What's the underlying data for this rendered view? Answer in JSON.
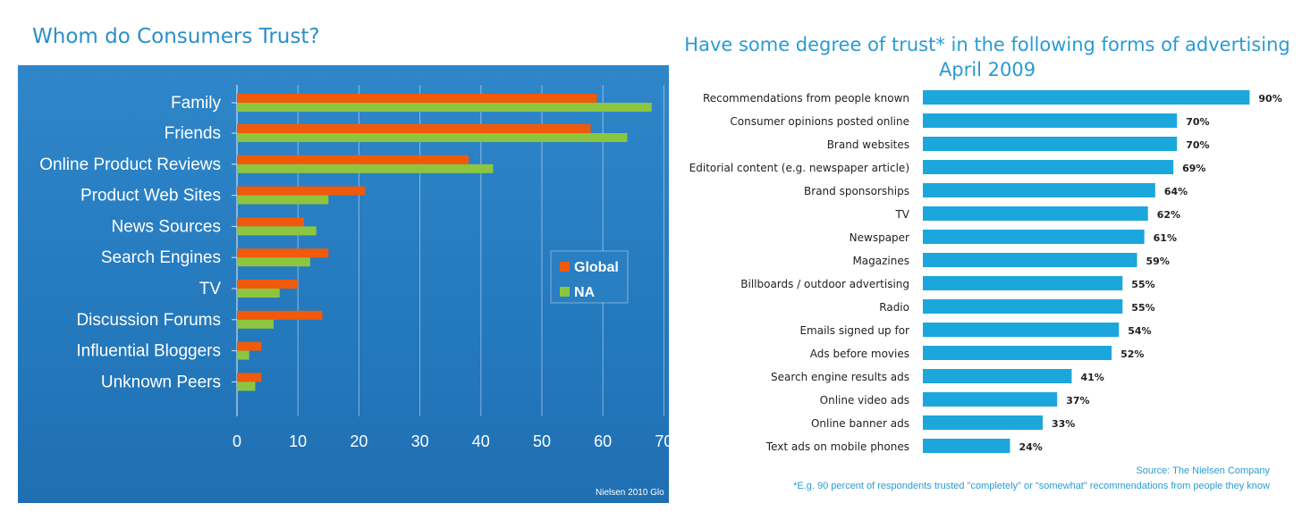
{
  "chart_data": [
    {
      "type": "bar",
      "orientation": "horizontal",
      "title": "Whom do Consumers Trust?",
      "categories": [
        "Family",
        "Friends",
        "Online Product Reviews",
        "Product Web Sites",
        "News Sources",
        "Search Engines",
        "TV",
        "Discussion Forums",
        "Influential Bloggers",
        "Unknown Peers"
      ],
      "series": [
        {
          "name": "Global",
          "color": "#f05a0a",
          "values": [
            59,
            58,
            38,
            21,
            11,
            15,
            10,
            14,
            4,
            4
          ]
        },
        {
          "name": "NA",
          "color": "#8cc63f",
          "values": [
            68,
            64,
            42,
            15,
            13,
            12,
            7,
            6,
            2,
            3
          ]
        }
      ],
      "xlim": [
        0,
        70
      ],
      "xticks": [
        "0",
        "10",
        "20",
        "30",
        "40",
        "50",
        "60",
        "70"
      ],
      "grid": true,
      "legend": "right",
      "footer": "Nielsen 2010 Glo"
    },
    {
      "type": "bar",
      "orientation": "horizontal",
      "title": [
        "Have some degree of trust* in the following forms of advertising",
        "April 2009"
      ],
      "categories": [
        "Recommendations from people known",
        "Consumer opinions posted online",
        "Brand websites",
        "Editorial content (e.g. newspaper article)",
        "Brand sponsorships",
        "TV",
        "Newspaper",
        "Magazines",
        "Billboards / outdoor advertising",
        "Radio",
        "Emails signed up for",
        "Ads before movies",
        "Search engine results ads",
        "Online video ads",
        "Online banner ads",
        "Text ads on mobile phones"
      ],
      "values": [
        90,
        70,
        70,
        69,
        64,
        62,
        61,
        59,
        55,
        55,
        54,
        52,
        41,
        37,
        33,
        24
      ],
      "value_labels": [
        "90%",
        "70%",
        "70%",
        "69%",
        "64%",
        "62%",
        "61%",
        "59%",
        "55%",
        "55%",
        "54%",
        "52%",
        "41%",
        "37%",
        "33%",
        "24%"
      ],
      "color": "#1ba6dc",
      "xlim": [
        0,
        100
      ],
      "source": "Source: The Nielsen Company",
      "footnote": "*E.g. 90 percent of respondents trusted \"completely\" or \"somewhat\" recommendations from people they know"
    }
  ]
}
